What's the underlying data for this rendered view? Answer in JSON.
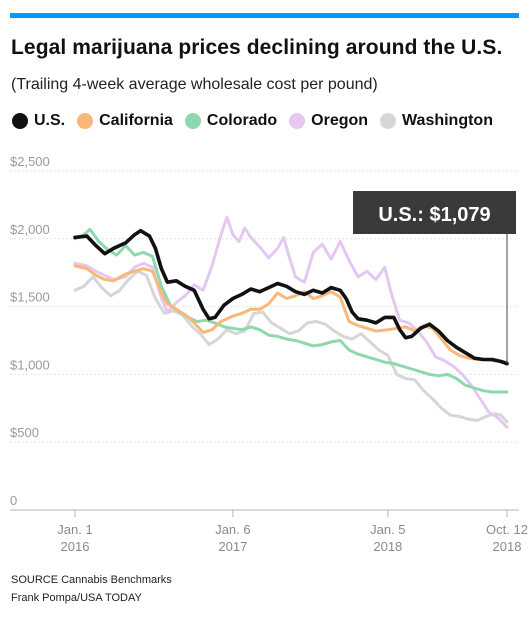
{
  "header": {
    "title": "Legal marijuana prices declining around the U.S.",
    "subtitle": "(Trailing 4-week average wholesale cost per pound)"
  },
  "colors": {
    "accent_bar": "#009bff",
    "us": "#111111",
    "california": "#f9b87a",
    "colorado": "#8ed8b0",
    "oregon": "#e4c8f2",
    "washington": "#d6d6d6",
    "callout_bg": "#3a3a3a"
  },
  "footer": {
    "source": "SOURCE Cannabis Benchmarks",
    "credit": "Frank Pompa/USA TODAY"
  },
  "chart_data": {
    "type": "line",
    "x_range": [
      "2016-01-01",
      "2018-10-12"
    ],
    "ylim": [
      0,
      2500
    ],
    "y_ticks": [
      "$2,500",
      "$2,000",
      "$1,500",
      "$1,000",
      "$500",
      "0"
    ],
    "y_tick_values": [
      2500,
      2000,
      1500,
      1000,
      500,
      0
    ],
    "x_ticks": [
      {
        "line1": "Jan. 1",
        "line2": "2016",
        "date": "2016-01-01"
      },
      {
        "line1": "Jan. 6",
        "line2": "2017",
        "date": "2017-01-06"
      },
      {
        "line1": "Jan. 5",
        "line2": "2018",
        "date": "2018-01-05"
      },
      {
        "line1": "Oct. 12",
        "line2": "2018",
        "date": "2018-10-12"
      }
    ],
    "grid": "horizontal",
    "legend_position": "top",
    "annotation": {
      "text": "U.S.: $1,079",
      "series": "U.S.",
      "value": 1079
    },
    "series": [
      {
        "name": "U.S.",
        "color": "#111111",
        "points": [
          [
            "2016-01-01",
            2010
          ],
          [
            "2016-01-29",
            2020
          ],
          [
            "2016-02-19",
            1950
          ],
          [
            "2016-03-11",
            1890
          ],
          [
            "2016-04-01",
            1930
          ],
          [
            "2016-04-29",
            1970
          ],
          [
            "2016-05-20",
            2030
          ],
          [
            "2016-06-03",
            2060
          ],
          [
            "2016-06-24",
            2020
          ],
          [
            "2016-07-08",
            1930
          ],
          [
            "2016-07-22",
            1780
          ],
          [
            "2016-08-05",
            1680
          ],
          [
            "2016-08-26",
            1690
          ],
          [
            "2016-09-16",
            1650
          ],
          [
            "2016-10-07",
            1620
          ],
          [
            "2016-10-28",
            1480
          ],
          [
            "2016-11-11",
            1410
          ],
          [
            "2016-11-25",
            1420
          ],
          [
            "2016-12-16",
            1510
          ],
          [
            "2017-01-06",
            1560
          ],
          [
            "2017-01-27",
            1590
          ],
          [
            "2017-02-17",
            1630
          ],
          [
            "2017-03-10",
            1610
          ],
          [
            "2017-03-31",
            1640
          ],
          [
            "2017-04-21",
            1670
          ],
          [
            "2017-05-12",
            1650
          ],
          [
            "2017-06-02",
            1610
          ],
          [
            "2017-06-23",
            1590
          ],
          [
            "2017-07-14",
            1620
          ],
          [
            "2017-08-04",
            1600
          ],
          [
            "2017-08-25",
            1640
          ],
          [
            "2017-09-15",
            1620
          ],
          [
            "2017-09-29",
            1560
          ],
          [
            "2017-10-13",
            1460
          ],
          [
            "2017-10-27",
            1410
          ],
          [
            "2017-11-17",
            1400
          ],
          [
            "2017-12-08",
            1380
          ],
          [
            "2017-12-29",
            1420
          ],
          [
            "2018-01-19",
            1420
          ],
          [
            "2018-02-02",
            1330
          ],
          [
            "2018-02-16",
            1270
          ],
          [
            "2018-03-02",
            1280
          ],
          [
            "2018-03-23",
            1340
          ],
          [
            "2018-04-13",
            1370
          ],
          [
            "2018-05-04",
            1320
          ],
          [
            "2018-05-25",
            1250
          ],
          [
            "2018-06-15",
            1200
          ],
          [
            "2018-07-06",
            1160
          ],
          [
            "2018-07-27",
            1120
          ],
          [
            "2018-08-17",
            1110
          ],
          [
            "2018-09-07",
            1110
          ],
          [
            "2018-09-28",
            1095
          ],
          [
            "2018-10-12",
            1079
          ]
        ]
      },
      {
        "name": "California",
        "color": "#f9b87a",
        "points": [
          [
            "2016-01-01",
            1800
          ],
          [
            "2016-01-29",
            1780
          ],
          [
            "2016-02-19",
            1730
          ],
          [
            "2016-03-11",
            1700
          ],
          [
            "2016-04-01",
            1690
          ],
          [
            "2016-04-29",
            1740
          ],
          [
            "2016-05-20",
            1760
          ],
          [
            "2016-06-10",
            1780
          ],
          [
            "2016-07-01",
            1760
          ],
          [
            "2016-07-22",
            1600
          ],
          [
            "2016-08-05",
            1520
          ],
          [
            "2016-08-26",
            1480
          ],
          [
            "2016-09-16",
            1440
          ],
          [
            "2016-10-07",
            1380
          ],
          [
            "2016-10-28",
            1310
          ],
          [
            "2016-11-18",
            1330
          ],
          [
            "2016-12-09",
            1390
          ],
          [
            "2017-01-06",
            1430
          ],
          [
            "2017-01-27",
            1450
          ],
          [
            "2017-02-17",
            1480
          ],
          [
            "2017-03-10",
            1480
          ],
          [
            "2017-03-31",
            1520
          ],
          [
            "2017-04-21",
            1600
          ],
          [
            "2017-05-12",
            1560
          ],
          [
            "2017-06-02",
            1580
          ],
          [
            "2017-06-23",
            1610
          ],
          [
            "2017-07-14",
            1560
          ],
          [
            "2017-08-04",
            1580
          ],
          [
            "2017-08-25",
            1610
          ],
          [
            "2017-09-15",
            1570
          ],
          [
            "2017-10-06",
            1390
          ],
          [
            "2017-10-27",
            1360
          ],
          [
            "2017-11-17",
            1340
          ],
          [
            "2017-12-08",
            1320
          ],
          [
            "2018-01-05",
            1330
          ],
          [
            "2018-01-26",
            1340
          ],
          [
            "2018-02-16",
            1350
          ],
          [
            "2018-03-09",
            1320
          ],
          [
            "2018-03-30",
            1360
          ],
          [
            "2018-04-20",
            1340
          ],
          [
            "2018-05-11",
            1260
          ],
          [
            "2018-06-01",
            1180
          ],
          [
            "2018-06-22",
            1140
          ],
          [
            "2018-07-13",
            1120
          ],
          [
            "2018-08-03",
            1110
          ],
          [
            "2018-08-24",
            1110
          ],
          [
            "2018-09-14",
            1100
          ],
          [
            "2018-10-12",
            1090
          ]
        ]
      },
      {
        "name": "Colorado",
        "color": "#8ed8b0",
        "points": [
          [
            "2016-01-01",
            2000
          ],
          [
            "2016-01-22",
            2030
          ],
          [
            "2016-02-05",
            2070
          ],
          [
            "2016-02-26",
            1980
          ],
          [
            "2016-03-18",
            1920
          ],
          [
            "2016-04-08",
            1880
          ],
          [
            "2016-04-29",
            1950
          ],
          [
            "2016-05-20",
            1880
          ],
          [
            "2016-06-10",
            1900
          ],
          [
            "2016-07-01",
            1870
          ],
          [
            "2016-07-22",
            1650
          ],
          [
            "2016-08-12",
            1510
          ],
          [
            "2016-09-02",
            1460
          ],
          [
            "2016-09-23",
            1420
          ],
          [
            "2016-10-14",
            1390
          ],
          [
            "2016-11-04",
            1400
          ],
          [
            "2016-11-25",
            1380
          ],
          [
            "2016-12-16",
            1350
          ],
          [
            "2017-01-06",
            1340
          ],
          [
            "2017-01-27",
            1330
          ],
          [
            "2017-02-17",
            1350
          ],
          [
            "2017-03-10",
            1330
          ],
          [
            "2017-03-31",
            1290
          ],
          [
            "2017-04-21",
            1280
          ],
          [
            "2017-05-12",
            1260
          ],
          [
            "2017-06-02",
            1250
          ],
          [
            "2017-06-23",
            1230
          ],
          [
            "2017-07-14",
            1210
          ],
          [
            "2017-08-04",
            1220
          ],
          [
            "2017-08-25",
            1240
          ],
          [
            "2017-09-15",
            1250
          ],
          [
            "2017-10-06",
            1180
          ],
          [
            "2017-10-27",
            1150
          ],
          [
            "2017-11-17",
            1130
          ],
          [
            "2017-12-08",
            1110
          ],
          [
            "2017-12-29",
            1090
          ],
          [
            "2018-01-19",
            1080
          ],
          [
            "2018-02-09",
            1060
          ],
          [
            "2018-03-02",
            1040
          ],
          [
            "2018-03-23",
            1020
          ],
          [
            "2018-04-13",
            1000
          ],
          [
            "2018-05-04",
            990
          ],
          [
            "2018-05-25",
            1000
          ],
          [
            "2018-06-15",
            970
          ],
          [
            "2018-07-06",
            920
          ],
          [
            "2018-07-27",
            900
          ],
          [
            "2018-08-17",
            880
          ],
          [
            "2018-09-07",
            870
          ],
          [
            "2018-09-28",
            870
          ],
          [
            "2018-10-12",
            870
          ]
        ]
      },
      {
        "name": "Oregon",
        "color": "#e4c8f2",
        "points": [
          [
            "2016-01-01",
            1820
          ],
          [
            "2016-01-29",
            1800
          ],
          [
            "2016-02-19",
            1760
          ],
          [
            "2016-03-11",
            1730
          ],
          [
            "2016-04-01",
            1700
          ],
          [
            "2016-04-29",
            1720
          ],
          [
            "2016-05-20",
            1790
          ],
          [
            "2016-06-10",
            1820
          ],
          [
            "2016-07-01",
            1790
          ],
          [
            "2016-07-22",
            1560
          ],
          [
            "2016-08-05",
            1460
          ],
          [
            "2016-08-26",
            1530
          ],
          [
            "2016-09-16",
            1580
          ],
          [
            "2016-10-07",
            1660
          ],
          [
            "2016-10-28",
            1620
          ],
          [
            "2016-11-18",
            1800
          ],
          [
            "2016-12-09",
            2030
          ],
          [
            "2016-12-23",
            2160
          ],
          [
            "2017-01-06",
            2030
          ],
          [
            "2017-01-20",
            1980
          ],
          [
            "2017-02-03",
            2080
          ],
          [
            "2017-02-17",
            2010
          ],
          [
            "2017-03-10",
            1940
          ],
          [
            "2017-03-31",
            1860
          ],
          [
            "2017-04-21",
            1930
          ],
          [
            "2017-05-05",
            2010
          ],
          [
            "2017-05-19",
            1860
          ],
          [
            "2017-06-02",
            1720
          ],
          [
            "2017-06-23",
            1680
          ],
          [
            "2017-07-14",
            1900
          ],
          [
            "2017-08-04",
            1960
          ],
          [
            "2017-08-25",
            1850
          ],
          [
            "2017-09-15",
            1980
          ],
          [
            "2017-10-06",
            1840
          ],
          [
            "2017-10-27",
            1720
          ],
          [
            "2017-11-17",
            1760
          ],
          [
            "2017-12-08",
            1700
          ],
          [
            "2017-12-29",
            1790
          ],
          [
            "2018-01-12",
            1610
          ],
          [
            "2018-02-02",
            1400
          ],
          [
            "2018-02-23",
            1380
          ],
          [
            "2018-03-16",
            1320
          ],
          [
            "2018-04-06",
            1240
          ],
          [
            "2018-04-27",
            1130
          ],
          [
            "2018-05-18",
            1100
          ],
          [
            "2018-06-08",
            1060
          ],
          [
            "2018-06-29",
            1000
          ],
          [
            "2018-07-20",
            920
          ],
          [
            "2018-08-10",
            820
          ],
          [
            "2018-08-31",
            720
          ],
          [
            "2018-09-21",
            680
          ],
          [
            "2018-10-12",
            610
          ]
        ]
      },
      {
        "name": "Washington",
        "color": "#d6d6d6",
        "points": [
          [
            "2016-01-01",
            1620
          ],
          [
            "2016-01-22",
            1650
          ],
          [
            "2016-02-12",
            1720
          ],
          [
            "2016-03-04",
            1640
          ],
          [
            "2016-03-25",
            1580
          ],
          [
            "2016-04-15",
            1620
          ],
          [
            "2016-05-06",
            1700
          ],
          [
            "2016-05-27",
            1760
          ],
          [
            "2016-06-17",
            1730
          ],
          [
            "2016-07-08",
            1560
          ],
          [
            "2016-07-29",
            1450
          ],
          [
            "2016-08-19",
            1470
          ],
          [
            "2016-09-09",
            1440
          ],
          [
            "2016-09-30",
            1360
          ],
          [
            "2016-10-21",
            1300
          ],
          [
            "2016-11-11",
            1220
          ],
          [
            "2016-12-02",
            1260
          ],
          [
            "2016-12-23",
            1330
          ],
          [
            "2017-01-13",
            1300
          ],
          [
            "2017-02-03",
            1320
          ],
          [
            "2017-02-24",
            1450
          ],
          [
            "2017-03-17",
            1460
          ],
          [
            "2017-04-07",
            1380
          ],
          [
            "2017-04-28",
            1340
          ],
          [
            "2017-05-19",
            1300
          ],
          [
            "2017-06-09",
            1320
          ],
          [
            "2017-06-30",
            1380
          ],
          [
            "2017-07-21",
            1390
          ],
          [
            "2017-08-11",
            1370
          ],
          [
            "2017-09-01",
            1320
          ],
          [
            "2017-09-22",
            1280
          ],
          [
            "2017-10-13",
            1260
          ],
          [
            "2017-11-03",
            1300
          ],
          [
            "2017-11-24",
            1240
          ],
          [
            "2017-12-15",
            1180
          ],
          [
            "2018-01-05",
            1140
          ],
          [
            "2018-01-26",
            1000
          ],
          [
            "2018-02-16",
            970
          ],
          [
            "2018-03-09",
            960
          ],
          [
            "2018-03-30",
            880
          ],
          [
            "2018-04-20",
            820
          ],
          [
            "2018-05-11",
            750
          ],
          [
            "2018-06-01",
            700
          ],
          [
            "2018-06-22",
            690
          ],
          [
            "2018-07-13",
            670
          ],
          [
            "2018-08-03",
            660
          ],
          [
            "2018-08-24",
            690
          ],
          [
            "2018-09-14",
            710
          ],
          [
            "2018-09-28",
            700
          ],
          [
            "2018-10-12",
            650
          ]
        ]
      }
    ]
  }
}
